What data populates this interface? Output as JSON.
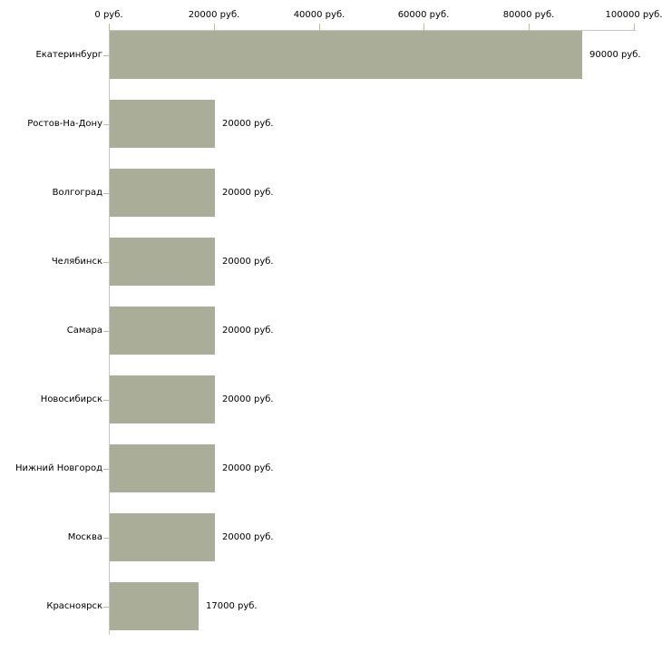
{
  "chart_data": {
    "type": "bar",
    "orientation": "horizontal",
    "unit": "руб.",
    "categories": [
      "Екатеринбург",
      "Ростов-На-Дону",
      "Волгоград",
      "Челябинск",
      "Самара",
      "Новосибирск",
      "Нижний Новгород",
      "Москва",
      "Красноярск"
    ],
    "values": [
      90000,
      20000,
      20000,
      20000,
      20000,
      20000,
      20000,
      20000,
      17000
    ],
    "bar_labels": [
      "90000 руб.",
      "20000 руб.",
      "20000 руб.",
      "20000 руб.",
      "20000 руб.",
      "20000 руб.",
      "20000 руб.",
      "20000 руб.",
      "17000 руб."
    ],
    "x_axis": {
      "position": "top",
      "range": [
        0,
        100000
      ],
      "ticks": [
        0,
        20000,
        40000,
        60000,
        80000,
        100000
      ],
      "tick_labels": [
        "0 руб.",
        "20000 руб.",
        "40000 руб.",
        "60000 руб.",
        "80000 руб.",
        "100000 руб."
      ],
      "grid": false
    },
    "colors": {
      "bar": "#aaad98",
      "axis_line": "#c6c6c6",
      "tick_mark": "#bcbd93",
      "text": "#000000",
      "background": "#ffffff"
    }
  }
}
